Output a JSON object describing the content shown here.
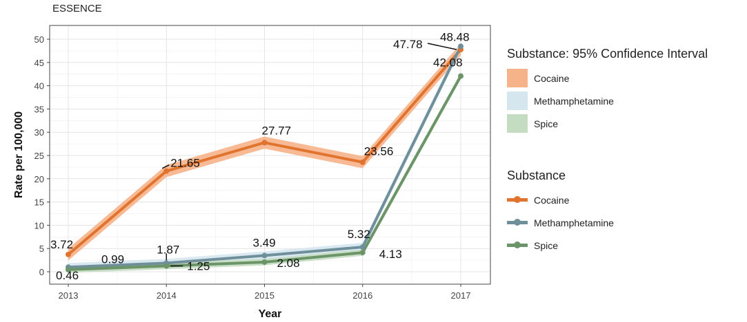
{
  "chart_data": {
    "type": "line",
    "subtitle": "ESSENCE",
    "xlabel": "Year",
    "ylabel": "Rate per 100,000",
    "categories": [
      "2013",
      "2014",
      "2015",
      "2016",
      "2017"
    ],
    "ylim": [
      0,
      50
    ],
    "yticks": [
      0,
      5,
      10,
      15,
      20,
      25,
      30,
      35,
      40,
      45,
      50
    ],
    "grid": true,
    "series": [
      {
        "name": "Cocaine",
        "values": [
          3.72,
          21.65,
          27.77,
          23.56,
          47.78
        ],
        "labels": [
          "3.72",
          "21.65",
          "27.77",
          "23.56",
          "47.78"
        ],
        "color": "#e0742f",
        "band_color": "#f6b38a"
      },
      {
        "name": "Methamphetamine",
        "values": [
          0.99,
          1.87,
          3.49,
          5.32,
          48.48
        ],
        "labels": [
          "0.99",
          "1.87",
          "3.49",
          "5.32",
          "48.48"
        ],
        "color": "#6f8f9b",
        "band_color": "#d5e6ef"
      },
      {
        "name": "Spice",
        "values": [
          0.46,
          1.25,
          2.08,
          4.13,
          42.08
        ],
        "labels": [
          "0.46",
          "1.25",
          "2.08",
          "4.13",
          "42.08"
        ],
        "color": "#6b9568",
        "band_color": "#c4dcc1"
      }
    ],
    "legend_ci_title": "Substance: 95% Confidence Interval",
    "legend_line_title": "Substance",
    "legend_placement": "right"
  }
}
